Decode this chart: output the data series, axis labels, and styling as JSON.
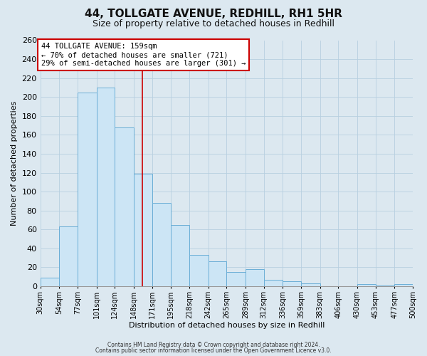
{
  "title": "44, TOLLGATE AVENUE, REDHILL, RH1 5HR",
  "subtitle": "Size of property relative to detached houses in Redhill",
  "xlabel": "Distribution of detached houses by size in Redhill",
  "ylabel": "Number of detached properties",
  "bin_edges": [
    30,
    54,
    77,
    101,
    124,
    148,
    171,
    195,
    218,
    242,
    265,
    289,
    312,
    336,
    359,
    383,
    406,
    430,
    453,
    477,
    500
  ],
  "bar_heights": [
    9,
    63,
    205,
    210,
    168,
    119,
    88,
    65,
    33,
    26,
    15,
    18,
    7,
    5,
    3,
    0,
    0,
    2,
    1,
    2
  ],
  "bar_color": "#cce5f5",
  "bar_edge_color": "#6baed6",
  "property_line_x": 159,
  "property_line_color": "#cc0000",
  "annotation_line1": "44 TOLLGATE AVENUE: 159sqm",
  "annotation_line2": "← 70% of detached houses are smaller (721)",
  "annotation_line3": "29% of semi-detached houses are larger (301) →",
  "annotation_box_color": "#ffffff",
  "annotation_box_edge": "#cc0000",
  "background_color": "#dce8f0",
  "plot_bg_color": "#dce8f0",
  "grid_color": "#b8cfe0",
  "footer_line1": "Contains HM Land Registry data © Crown copyright and database right 2024.",
  "footer_line2": "Contains public sector information licensed under the Open Government Licence v3.0.",
  "ylim": [
    0,
    260
  ],
  "yticks": [
    0,
    20,
    40,
    60,
    80,
    100,
    120,
    140,
    160,
    180,
    200,
    220,
    240,
    260
  ],
  "title_fontsize": 11,
  "subtitle_fontsize": 9,
  "tick_label_fontsize": 7,
  "axis_label_fontsize": 8
}
